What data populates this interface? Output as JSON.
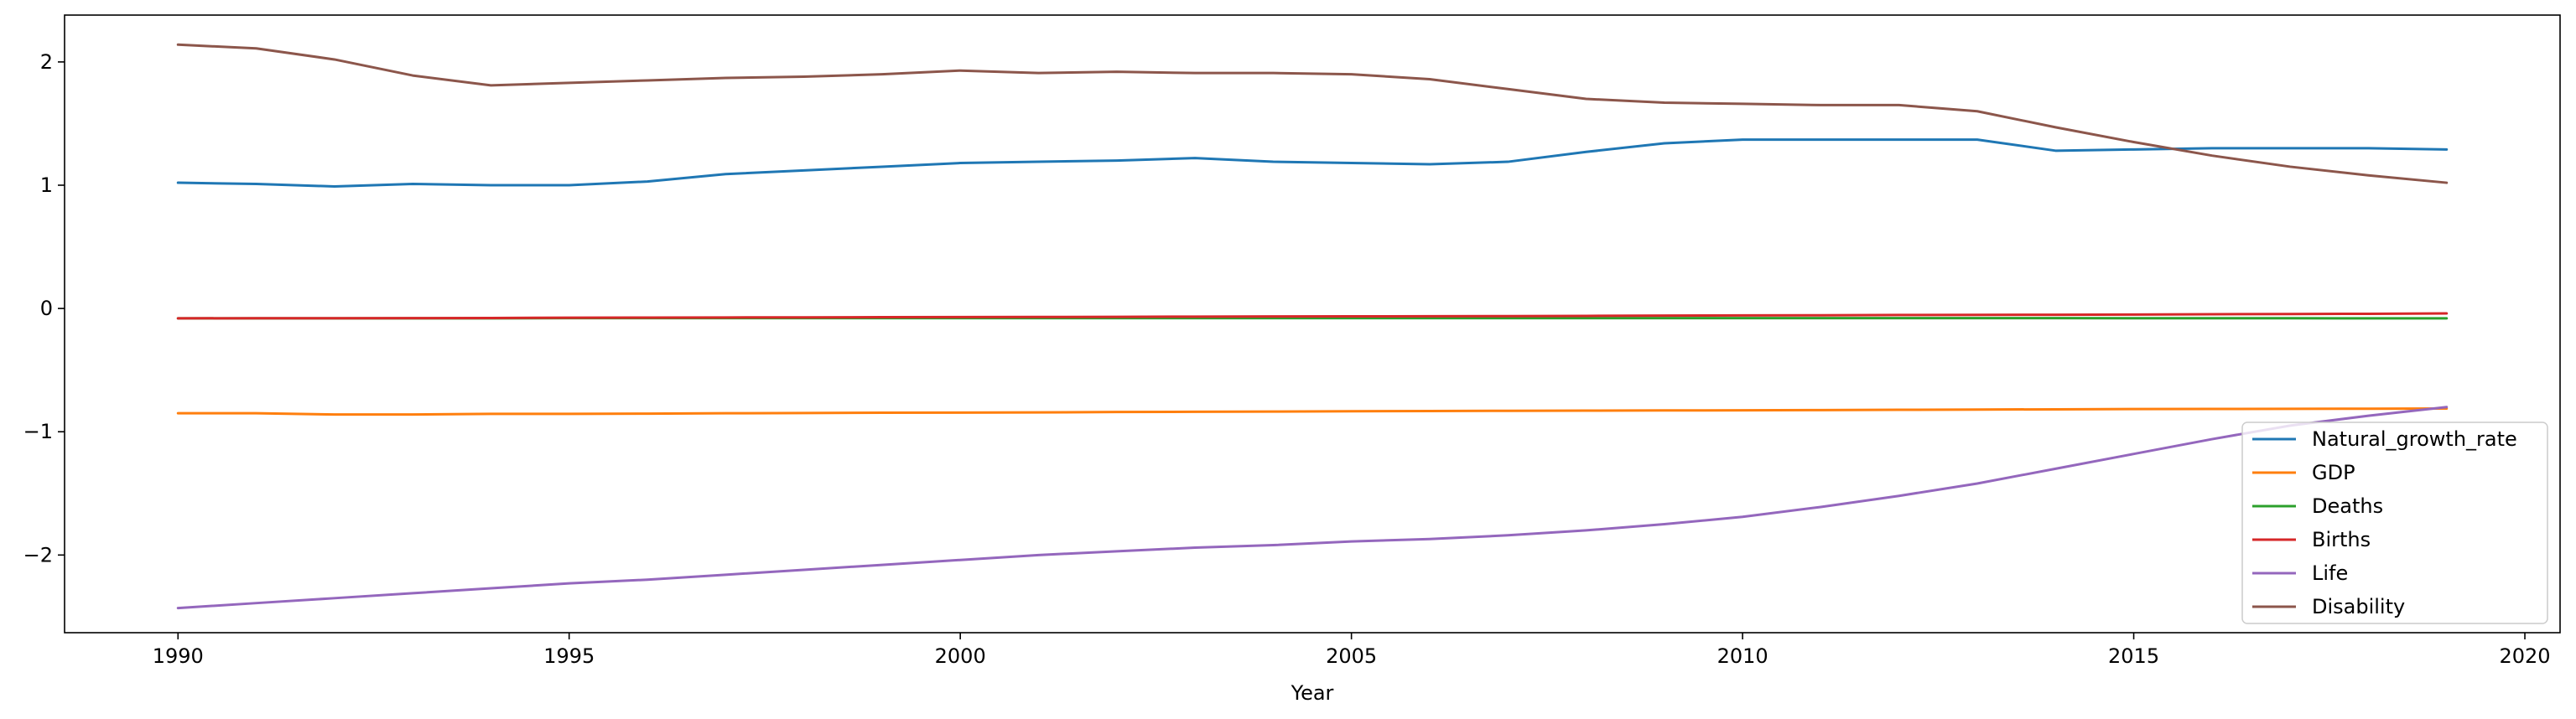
{
  "chart_data": {
    "type": "line",
    "title": "",
    "xlabel": "Year",
    "ylabel": "",
    "xlim": [
      1988.55,
      2020.45
    ],
    "ylim": [
      -2.63,
      2.38
    ],
    "xticks": [
      1990,
      1995,
      2000,
      2005,
      2010,
      2015,
      2020
    ],
    "yticks": [
      -2,
      -1,
      0,
      1,
      2
    ],
    "ytick_labels": [
      "−2",
      "−1",
      "0",
      "1",
      "2"
    ],
    "grid": false,
    "legend_position": "lower right",
    "x": [
      1990,
      1991,
      1992,
      1993,
      1994,
      1995,
      1996,
      1997,
      1998,
      1999,
      2000,
      2001,
      2002,
      2003,
      2004,
      2005,
      2006,
      2007,
      2008,
      2009,
      2010,
      2011,
      2012,
      2013,
      2014,
      2015,
      2016,
      2017,
      2018,
      2019
    ],
    "series": [
      {
        "name": "Natural_growth_rate",
        "color": "#1f77b4",
        "values": [
          1.02,
          1.01,
          0.99,
          1.01,
          1.0,
          1.0,
          1.03,
          1.09,
          1.12,
          1.15,
          1.18,
          1.19,
          1.2,
          1.22,
          1.19,
          1.18,
          1.17,
          1.19,
          1.27,
          1.34,
          1.37,
          1.37,
          1.37,
          1.37,
          1.28,
          1.29,
          1.3,
          1.3,
          1.3,
          1.29
        ]
      },
      {
        "name": "GDP",
        "color": "#ff7f0e",
        "values": [
          -0.85,
          -0.85,
          -0.86,
          -0.86,
          -0.855,
          -0.855,
          -0.853,
          -0.85,
          -0.848,
          -0.846,
          -0.845,
          -0.843,
          -0.84,
          -0.838,
          -0.836,
          -0.834,
          -0.832,
          -0.83,
          -0.829,
          -0.827,
          -0.826,
          -0.824,
          -0.822,
          -0.82,
          -0.818,
          -0.816,
          -0.815,
          -0.814,
          -0.813,
          -0.812
        ]
      },
      {
        "name": "Deaths",
        "color": "#2ca02c",
        "values": [
          -0.08,
          -0.08,
          -0.08,
          -0.08,
          -0.08,
          -0.078,
          -0.078,
          -0.078,
          -0.078,
          -0.078,
          -0.078,
          -0.078,
          -0.078,
          -0.078,
          -0.078,
          -0.078,
          -0.078,
          -0.078,
          -0.078,
          -0.078,
          -0.078,
          -0.078,
          -0.078,
          -0.078,
          -0.078,
          -0.079,
          -0.079,
          -0.079,
          -0.08,
          -0.08
        ]
      },
      {
        "name": "Births",
        "color": "#d62728",
        "values": [
          -0.08,
          -0.079,
          -0.079,
          -0.078,
          -0.077,
          -0.075,
          -0.074,
          -0.073,
          -0.072,
          -0.071,
          -0.07,
          -0.069,
          -0.068,
          -0.066,
          -0.065,
          -0.064,
          -0.063,
          -0.062,
          -0.06,
          -0.058,
          -0.056,
          -0.055,
          -0.053,
          -0.052,
          -0.051,
          -0.049,
          -0.047,
          -0.045,
          -0.043,
          -0.04
        ]
      },
      {
        "name": "Life",
        "color": "#9467bd",
        "values": [
          -2.43,
          -2.39,
          -2.35,
          -2.31,
          -2.27,
          -2.23,
          -2.2,
          -2.16,
          -2.12,
          -2.08,
          -2.04,
          -2.0,
          -1.97,
          -1.94,
          -1.92,
          -1.89,
          -1.87,
          -1.84,
          -1.8,
          -1.75,
          -1.69,
          -1.61,
          -1.52,
          -1.42,
          -1.3,
          -1.18,
          -1.06,
          -0.95,
          -0.87,
          -0.8
        ]
      },
      {
        "name": "Disability",
        "color": "#8c564b",
        "values": [
          2.14,
          2.11,
          2.02,
          1.89,
          1.81,
          1.83,
          1.85,
          1.87,
          1.88,
          1.9,
          1.93,
          1.91,
          1.92,
          1.91,
          1.91,
          1.9,
          1.86,
          1.78,
          1.7,
          1.67,
          1.66,
          1.65,
          1.65,
          1.6,
          1.47,
          1.35,
          1.24,
          1.15,
          1.08,
          1.02
        ]
      }
    ]
  }
}
